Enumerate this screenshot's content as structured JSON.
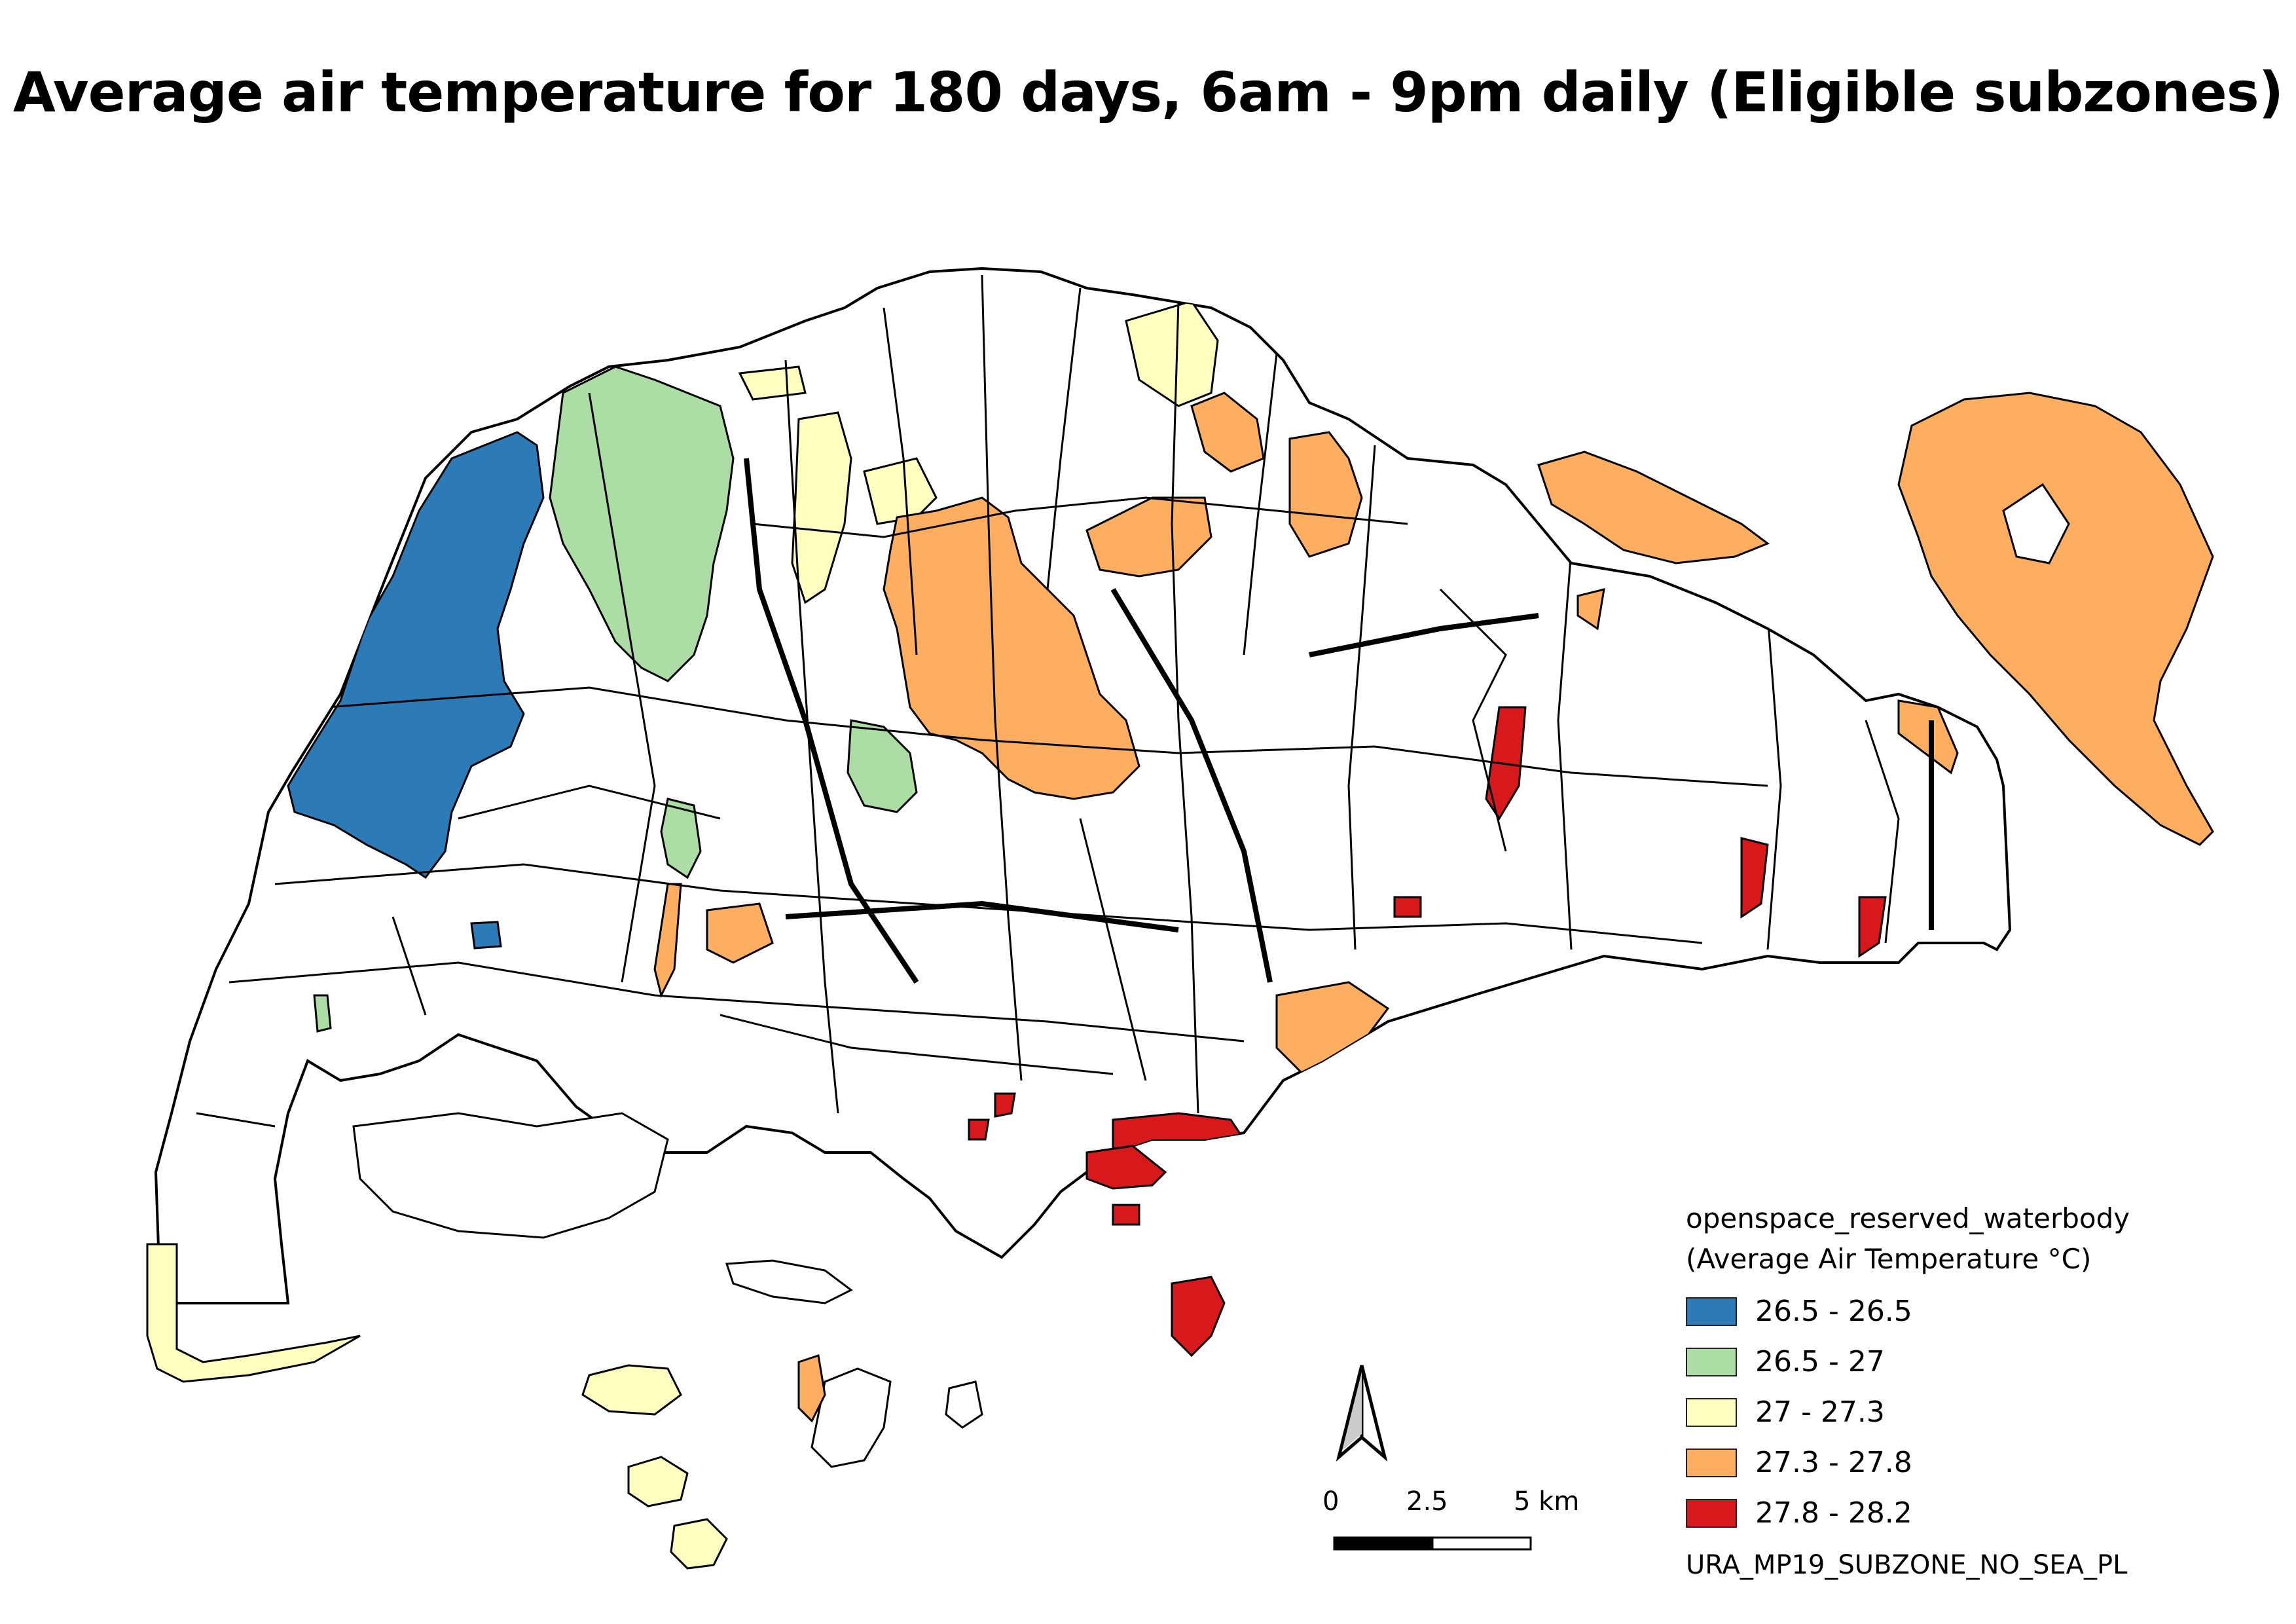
{
  "title": "Average air temperature for 180 days, 6am - 9pm daily (Eligible subzones)",
  "legend": {
    "layer_name": "openspace_reserved_waterbody",
    "field_label": "(Average Air Temperature °C)",
    "classes": [
      {
        "label": "26.5 - 26.5",
        "color": "#2c7bb6"
      },
      {
        "label": "26.5 - 27",
        "color": "#abdda4"
      },
      {
        "label": "27 - 27.3",
        "color": "#ffffbf"
      },
      {
        "label": "27.3 - 27.8",
        "color": "#fdae61"
      },
      {
        "label": "27.8 - 28.2",
        "color": "#d7191c"
      }
    ],
    "base_layer_name": "URA_MP19_SUBZONE_NO_SEA_PL"
  },
  "scale_bar": {
    "labels": [
      "0",
      "2.5",
      "5 km"
    ]
  },
  "north_arrow": {
    "icon": "north-arrow-icon"
  },
  "colors": {
    "outline": "#000000",
    "background": "#ffffff"
  }
}
